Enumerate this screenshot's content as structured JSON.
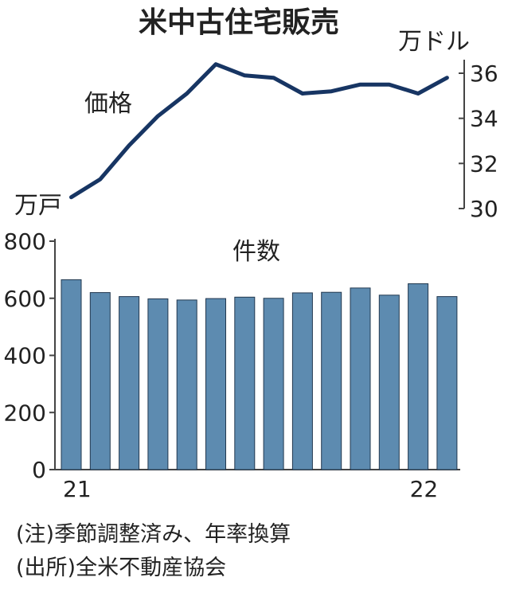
{
  "chart_data": [
    {
      "type": "line",
      "title": "米中古住宅販売",
      "series_label": "価格",
      "unit_right": "万ドル",
      "unit_left": "万戸",
      "ylim": [
        30,
        36.6
      ],
      "yticks": [
        30,
        32,
        34,
        36
      ],
      "values": [
        30.5,
        31.3,
        32.8,
        34.1,
        35.1,
        36.4,
        35.9,
        35.8,
        35.1,
        35.2,
        35.5,
        35.5,
        35.1,
        35.8
      ],
      "color": "#173563"
    },
    {
      "type": "bar",
      "series_label": "件数",
      "ylim": [
        0,
        800
      ],
      "yticks": [
        0,
        200,
        400,
        600,
        800
      ],
      "values": [
        665,
        620,
        606,
        598,
        594,
        599,
        604,
        600,
        619,
        621,
        636,
        611,
        651,
        606
      ],
      "x_tick_labels": [
        {
          "index": 0,
          "label": "21"
        },
        {
          "index": 12,
          "label": "22"
        }
      ],
      "color": "#5d8bb0"
    }
  ],
  "notes": [
    "(注)季節調整済み、年率換算",
    "(出所)全米不動産協会"
  ]
}
